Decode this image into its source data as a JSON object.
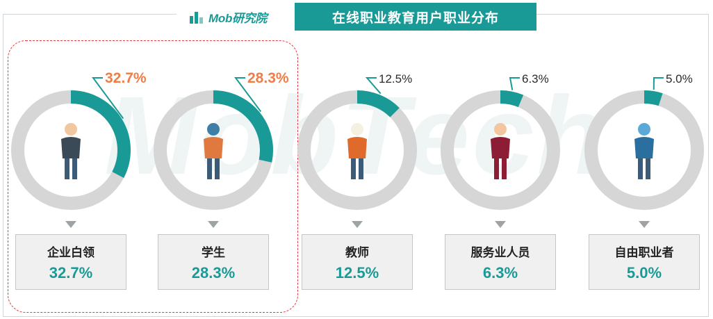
{
  "header": {
    "brand": "Mob研究院",
    "title": "在线职业教育用户职业分布"
  },
  "colors": {
    "accent": "#1a9a96",
    "highlight": "#ef7d45",
    "track": "#d6d6d6",
    "dashed_border": "#e0393e"
  },
  "watermark": "MobTech",
  "chart_data": {
    "type": "pie",
    "title": "在线职业教育用户职业分布",
    "categories": [
      "企业白领",
      "学生",
      "教师",
      "服务业人员",
      "自由职业者"
    ],
    "values": [
      32.7,
      28.3,
      12.5,
      6.3,
      5.0
    ],
    "value_labels": [
      "32.7%",
      "28.3%",
      "12.5%",
      "6.3%",
      "5.0%"
    ],
    "unit": "%",
    "highlighted": [
      "企业白领",
      "学生"
    ],
    "style": "donut"
  }
}
